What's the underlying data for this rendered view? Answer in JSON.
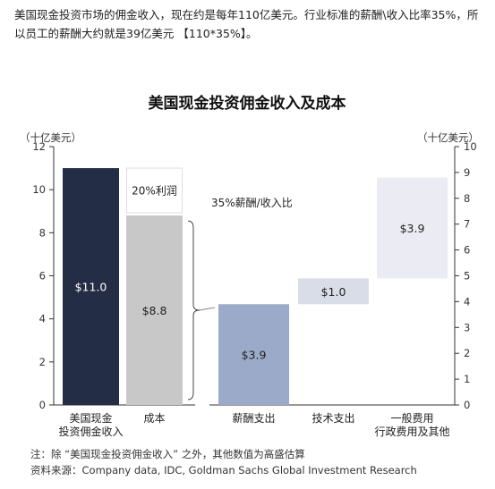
{
  "intro_text": "美国现金投资市场的佣金收入，现在约是每年110亿美元。行业标准的薪酬\\收入比率35%，所以员工的薪酬大约就是39亿美元 【110*35%】。",
  "chart_data": {
    "type": "bar",
    "title": "美国现金投资佣金收入及成本",
    "left_unit": "（十亿美元）",
    "right_unit": "（十亿美元）",
    "left_ylim": [
      0,
      12
    ],
    "left_ticks": [
      "0",
      "2",
      "4",
      "6",
      "8",
      "10",
      "12"
    ],
    "right_ylim": [
      0,
      10
    ],
    "right_ticks": [
      "0",
      "1",
      "2",
      "3",
      "4",
      "5",
      "6",
      "7",
      "8",
      "9",
      "10"
    ],
    "grid": false,
    "left_group": {
      "categories": [
        "美国现金\n投资佣金收入",
        "成本"
      ],
      "bars": [
        {
          "label": "$11.0",
          "value": 11.0,
          "color": "#232d45",
          "label_color": "#ffffff"
        },
        {
          "label": "$8.8",
          "value": 8.8,
          "color": "#c8c8c8",
          "label_color": "#222222"
        }
      ],
      "profit_label": "20%利润",
      "profit_range": [
        8.8,
        11.0
      ]
    },
    "right_group": {
      "categories": [
        "薪酬支出",
        "技术支出",
        "一般费用\n行政费用及其他"
      ],
      "bars": [
        {
          "label": "$3.9",
          "start": 0,
          "end": 3.9,
          "color": "#9aaac8"
        },
        {
          "label": "$1.0",
          "start": 3.9,
          "end": 4.9,
          "color": "#d8dde8"
        },
        {
          "label": "$3.9",
          "start": 4.9,
          "end": 8.8,
          "color": "#ebecf3"
        }
      ]
    },
    "annotation": "35%薪酬/收入比",
    "footnote_1": "注：除 “美国现金投资佣金收入” 之外，其他数值为高盛估算",
    "footnote_2": "资料来源：Company data, IDC, Goldman Sachs Global Investment Research"
  }
}
